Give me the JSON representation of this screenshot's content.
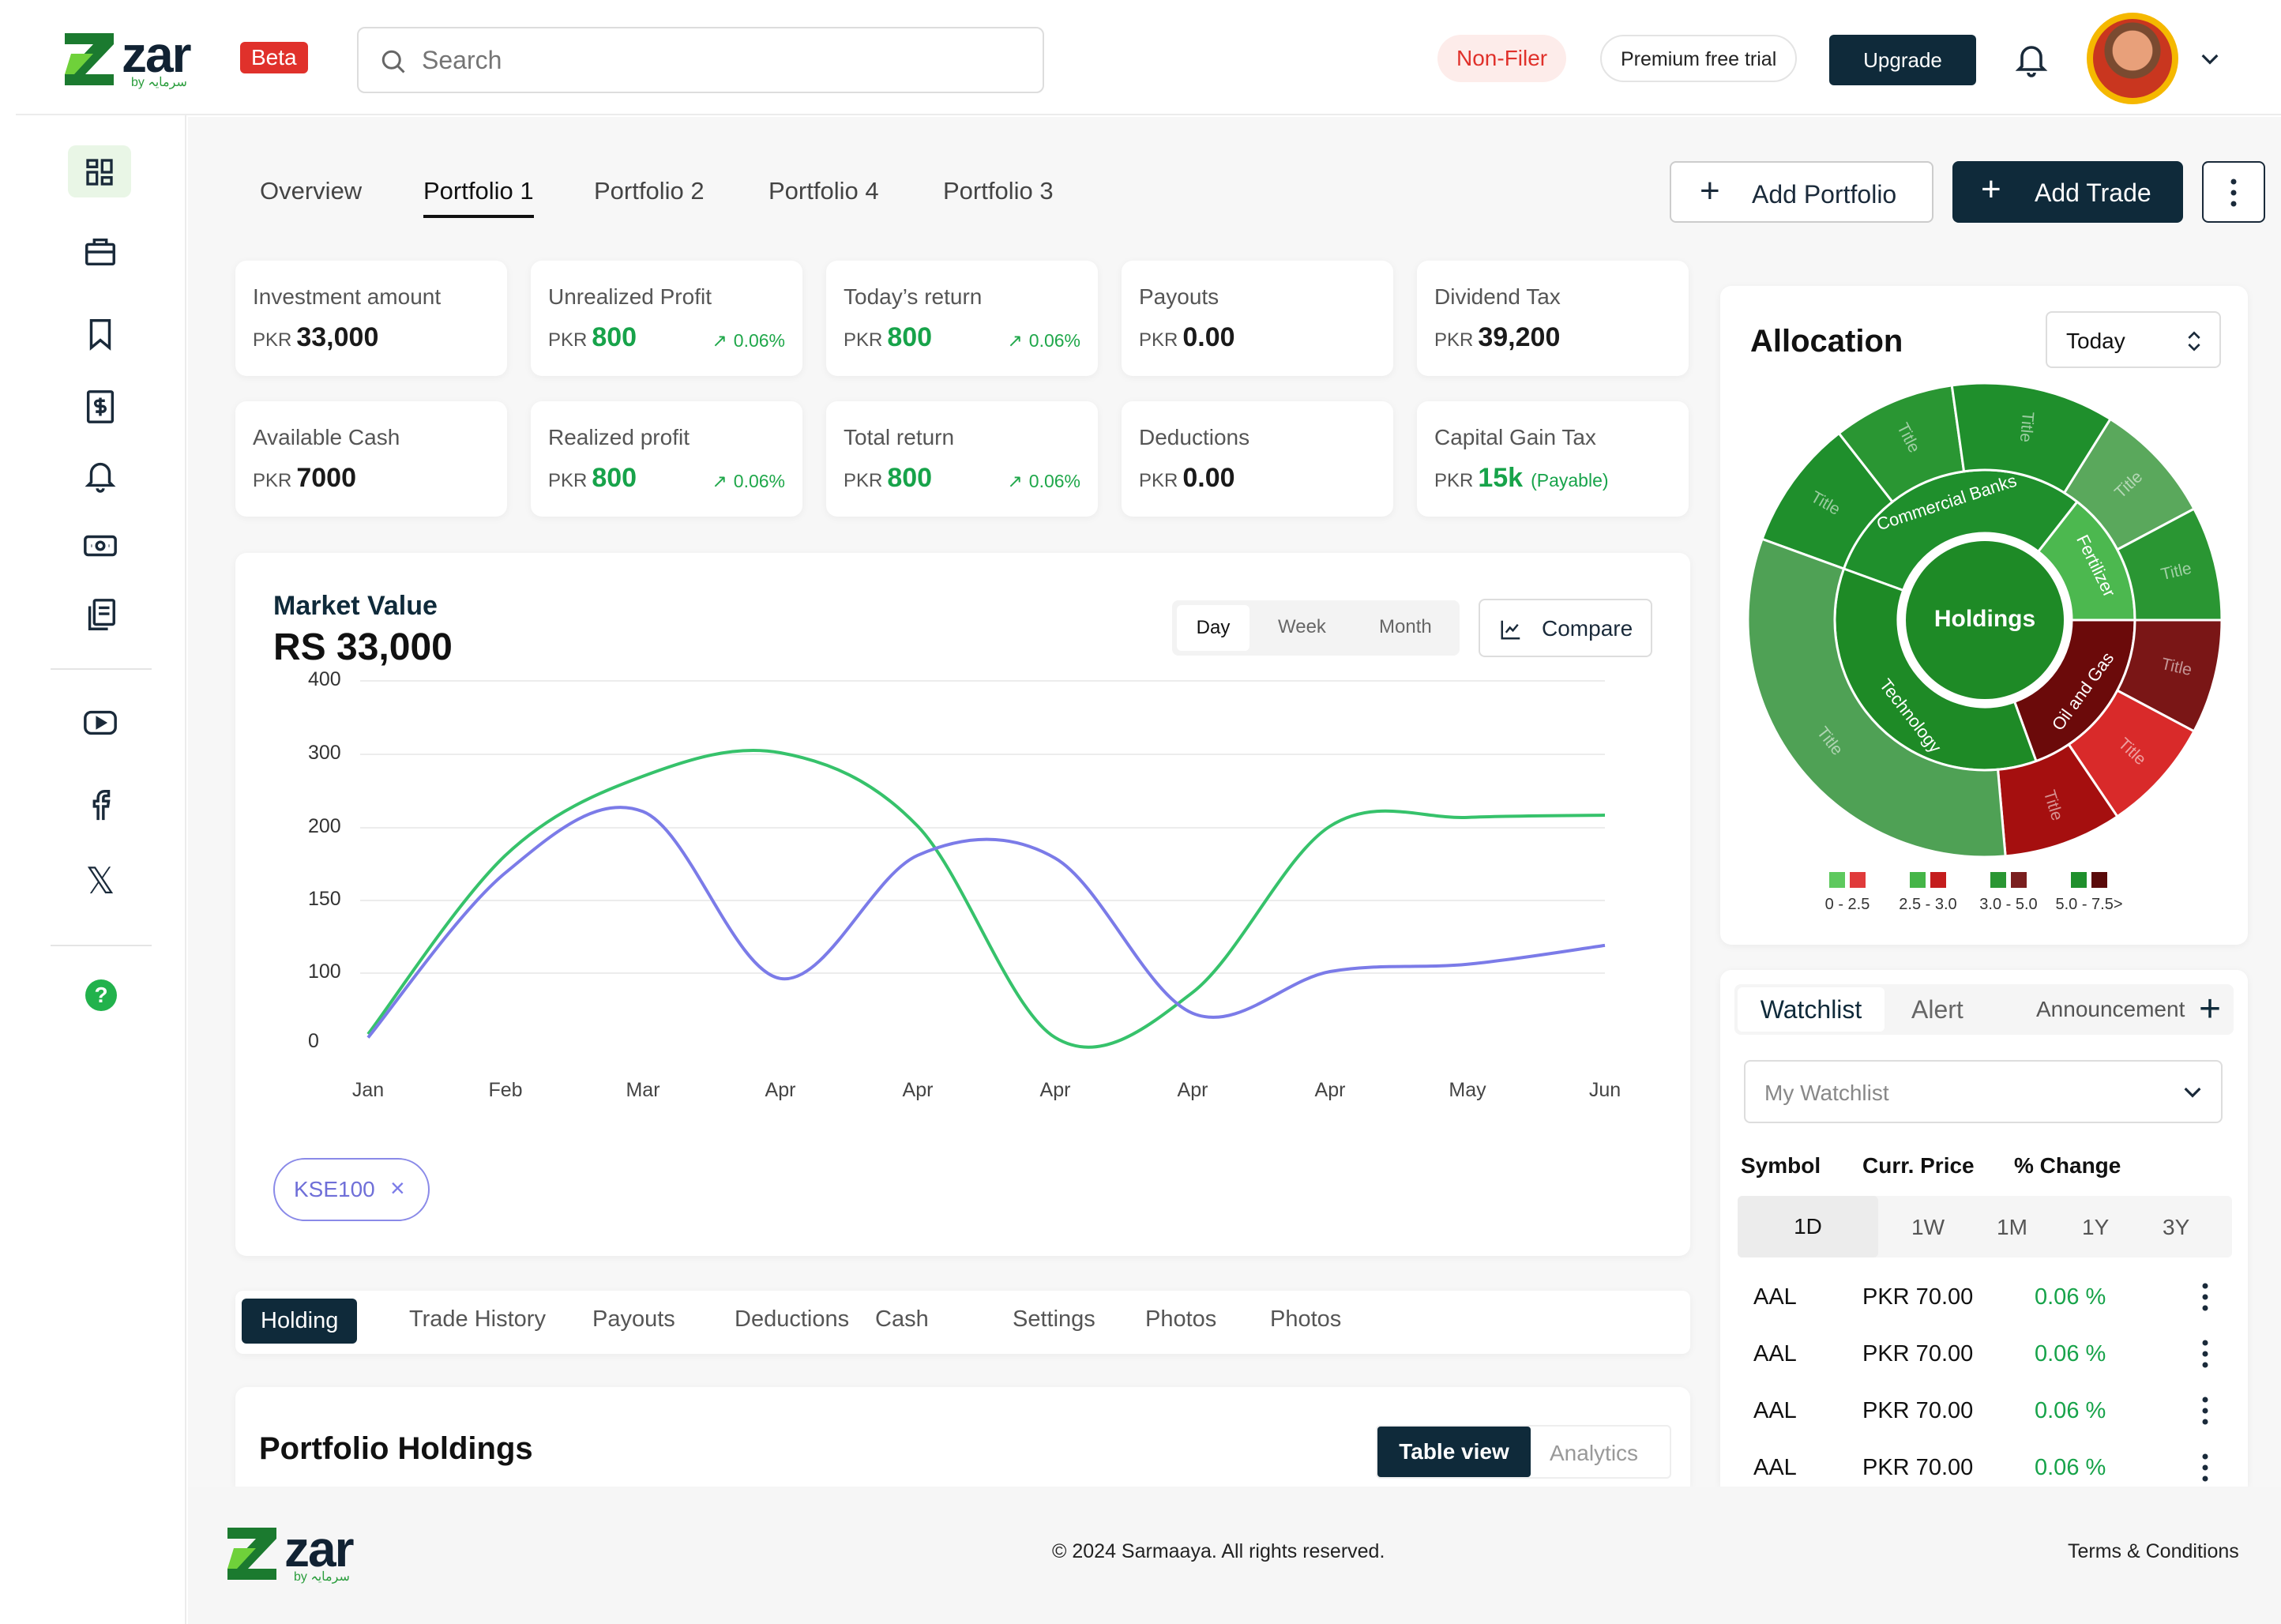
{
  "brand": {
    "name": "zar",
    "byline": "by سرمایہ",
    "beta": "Beta"
  },
  "header": {
    "search_placeholder": "Search",
    "status": "Non-Filer",
    "trial": "Premium free trial",
    "upgrade": "Upgrade"
  },
  "tabs": [
    "Overview",
    "Portfolio 1",
    "Portfolio 2",
    "Portfolio 4",
    "Portfolio 3"
  ],
  "actions": {
    "add_portfolio": "Add Portfolio",
    "add_trade": "Add Trade"
  },
  "stats": [
    {
      "label": "Investment amount",
      "currency": "PKR",
      "value": "33,000"
    },
    {
      "label": "Unrealized Profit",
      "currency": "PKR",
      "value": "800",
      "change": "0.06%"
    },
    {
      "label": "Today’s return",
      "currency": "PKR",
      "value": "800",
      "change": "0.06%"
    },
    {
      "label": "Payouts",
      "currency": "PKR",
      "value": "0.00"
    },
    {
      "label": "Dividend Tax",
      "currency": "PKR",
      "value": "39,200"
    },
    {
      "label": "Available Cash",
      "currency": "PKR",
      "value": "7000"
    },
    {
      "label": "Realized profit",
      "currency": "PKR",
      "value": "800",
      "change": "0.06%"
    },
    {
      "label": "Total return",
      "currency": "PKR",
      "value": "800",
      "change": "0.06%"
    },
    {
      "label": "Deductions",
      "currency": "PKR",
      "value": "0.00"
    },
    {
      "label": "Capital Gain Tax",
      "currency": "PKR",
      "value": "15k",
      "note": "(Payable)"
    }
  ],
  "market": {
    "title": "Market Value",
    "value": "RS 33,000",
    "ranges": [
      "Day",
      "Week",
      "Month"
    ],
    "compare": "Compare",
    "chip": "KSE100"
  },
  "chart_data": {
    "type": "line",
    "x": [
      "Jan",
      "Feb",
      "Mar",
      "Apr",
      "Apr",
      "Apr",
      "Apr",
      "Apr",
      "May",
      "Jun"
    ],
    "y_ticks": [
      400,
      300,
      200,
      150,
      100,
      0
    ],
    "series": [
      {
        "color": "#36c26b",
        "values": [
          10,
          180,
          268,
          300,
          200,
          5,
          70,
          200,
          212,
          215
        ]
      },
      {
        "color": "#7b7be8",
        "values": [
          5,
          168,
          220,
          90,
          180,
          178,
          40,
          100,
          105,
          118
        ]
      }
    ]
  },
  "bottom_tabs": [
    "Holding",
    "Trade History",
    "Payouts",
    "Deductions",
    "Cash",
    "Settings",
    "Photos",
    "Photos"
  ],
  "holdings": {
    "title": "Portfolio Holdings",
    "table_view": "Table view",
    "analytics": "Analytics"
  },
  "allocation": {
    "title": "Allocation",
    "period": "Today",
    "center": "Holdings",
    "sectors": [
      "Commercial Banks",
      "Fertilizer",
      "Oil and Gas",
      "Technology"
    ],
    "outer_label": "Title",
    "legend": [
      "0 - 2.5",
      "2.5 - 3.0",
      "3.0 - 5.0",
      "5.0 - 7.5>"
    ]
  },
  "watchlist": {
    "tabs": [
      "Watchlist",
      "Alert",
      "Announcement"
    ],
    "select": "My Watchlist",
    "columns": [
      "Symbol",
      "Curr. Price",
      "% Change"
    ],
    "periods": [
      "1D",
      "1W",
      "1M",
      "1Y",
      "3Y"
    ],
    "rows": [
      {
        "symbol": "AAL",
        "price": "PKR 70.00",
        "change": "0.06 %"
      },
      {
        "symbol": "AAL",
        "price": "PKR 70.00",
        "change": "0.06 %"
      },
      {
        "symbol": "AAL",
        "price": "PKR 70.00",
        "change": "0.06 %"
      },
      {
        "symbol": "AAL",
        "price": "PKR 70.00",
        "change": "0.06 %"
      }
    ]
  },
  "footer": {
    "copyright": "© 2024 Sarmaaya. All rights reserved.",
    "terms": "Terms & Conditions"
  }
}
